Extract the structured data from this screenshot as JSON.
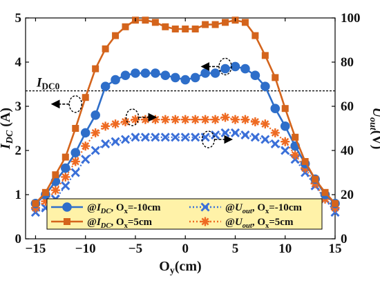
{
  "chart_data": {
    "type": "line",
    "xlabel": "O",
    "xlabel_sub": "y",
    "xlabel_unit": "(cm)",
    "ylabel_left": "I",
    "ylabel_left_sub": "DC",
    "ylabel_left_unit": " (A)",
    "ylabel_right": "U",
    "ylabel_right_sub": "out",
    "ylabel_right_unit": "(V)",
    "xlim": [
      -16,
      15
    ],
    "ylim_left": [
      0,
      5
    ],
    "ylim_right": [
      0,
      100
    ],
    "x_ticks": [
      -15,
      -10,
      -5,
      0,
      5,
      10,
      15
    ],
    "y_left_ticks": [
      0,
      1,
      2,
      3,
      4,
      5
    ],
    "y_right_ticks": [
      0,
      20,
      40,
      60,
      80,
      100
    ],
    "reference_line": {
      "axis": "left",
      "value": 3.35,
      "label": "I",
      "label_sub": "DC0",
      "style": "dashed",
      "color": "#000000"
    },
    "legend": {
      "position": "bottom-center",
      "background": "#fff2a8"
    },
    "series": [
      {
        "name": "@IDC, Ox=-10cm",
        "legend_parts": [
          "@",
          "I",
          "DC",
          ", O",
          "x",
          "=-10cm"
        ],
        "axis": "left",
        "color": "#2e6ec9",
        "marker": "circle",
        "line": "solid",
        "x": [
          -15,
          -14,
          -13,
          -12,
          -11,
          -10,
          -9,
          -8,
          -7,
          -6,
          -5,
          -4,
          -3,
          -2,
          -1,
          0,
          1,
          2,
          3,
          4,
          5,
          6,
          7,
          8,
          9,
          10,
          11,
          12,
          13,
          14,
          15
        ],
        "y": [
          0.8,
          1.0,
          1.3,
          1.6,
          1.95,
          2.4,
          2.8,
          3.45,
          3.6,
          3.7,
          3.75,
          3.75,
          3.75,
          3.7,
          3.65,
          3.6,
          3.65,
          3.75,
          3.75,
          3.85,
          3.9,
          3.85,
          3.7,
          3.45,
          2.95,
          2.55,
          2.1,
          1.7,
          1.35,
          1.0,
          0.8
        ]
      },
      {
        "name": "@IDC, Ox=5cm",
        "legend_parts": [
          "@",
          "I",
          "DC",
          ", O",
          "x",
          "=5cm"
        ],
        "axis": "left",
        "color": "#d4641c",
        "marker": "square",
        "line": "solid",
        "x": [
          -15,
          -14,
          -13,
          -12,
          -11,
          -10,
          -9,
          -8,
          -7,
          -6,
          -5,
          -4,
          -3,
          -2,
          -1,
          0,
          1,
          2,
          3,
          4,
          5,
          6,
          7,
          8,
          9,
          10,
          11,
          12,
          13,
          14,
          15
        ],
        "y": [
          0.8,
          1.05,
          1.45,
          1.85,
          2.5,
          3.2,
          3.85,
          4.3,
          4.6,
          4.8,
          4.95,
          4.95,
          4.9,
          4.8,
          4.75,
          4.75,
          4.75,
          4.85,
          4.85,
          4.9,
          4.95,
          4.9,
          4.6,
          4.15,
          3.65,
          2.95,
          2.3,
          1.75,
          1.35,
          1.05,
          0.8
        ]
      },
      {
        "name": "@Uout, Ox=-10cm",
        "legend_parts": [
          "@",
          "U",
          "out",
          ", O",
          "x",
          "=-10cm"
        ],
        "axis": "right",
        "color": "#3a6fd8",
        "marker": "x",
        "line": "dotted",
        "x": [
          -15,
          -14,
          -13,
          -12,
          -11,
          -10,
          -9,
          -8,
          -7,
          -6,
          -5,
          -4,
          -3,
          -2,
          -1,
          0,
          1,
          2,
          3,
          4,
          5,
          6,
          7,
          8,
          9,
          10,
          11,
          12,
          13,
          14,
          15
        ],
        "y": [
          12,
          14,
          18,
          24,
          30,
          36,
          40,
          43,
          44,
          45,
          46,
          46,
          46,
          46,
          46,
          46,
          46,
          46,
          47,
          48,
          48,
          47,
          46,
          45,
          43,
          40,
          36,
          30,
          24,
          18,
          12
        ]
      },
      {
        "name": "@Uout, Ox=5cm",
        "legend_parts": [
          "@",
          "U",
          "out",
          ", O",
          "x",
          "=5cm"
        ],
        "axis": "right",
        "color": "#ee6a22",
        "marker": "asterisk",
        "line": "dotted",
        "x": [
          -15,
          -14,
          -13,
          -12,
          -11,
          -10,
          -9,
          -8,
          -7,
          -6,
          -5,
          -4,
          -3,
          -2,
          -1,
          0,
          1,
          2,
          3,
          4,
          5,
          6,
          7,
          8,
          9,
          10,
          11,
          12,
          13,
          14,
          15
        ],
        "y": [
          14,
          17,
          22,
          28,
          35,
          42,
          48,
          51,
          52,
          53,
          54,
          54,
          54,
          54,
          54,
          54,
          54,
          54,
          54,
          55,
          54,
          54,
          53,
          52,
          48,
          44,
          38,
          32,
          25,
          18,
          14
        ]
      }
    ],
    "annotations": [
      {
        "type": "ellipse-arrow",
        "x": 4,
        "y": 3.9,
        "axis": "left",
        "arrow": "left"
      },
      {
        "type": "ellipse-arrow",
        "x": -11,
        "y": 3.05,
        "axis": "left",
        "arrow": "left"
      },
      {
        "type": "ellipse-arrow",
        "x": -5.3,
        "y": 2.75,
        "axis": "left",
        "arrow": "right"
      },
      {
        "type": "ellipse-arrow",
        "x": 2.3,
        "y": 2.25,
        "axis": "left",
        "arrow": "right"
      }
    ]
  }
}
